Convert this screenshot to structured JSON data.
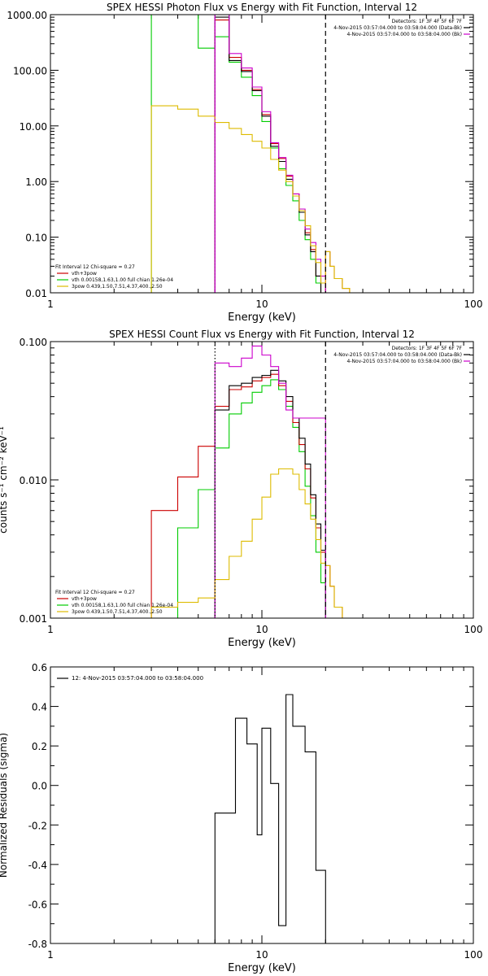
{
  "chart_data": [
    {
      "type": "line",
      "title": "SPEX HESSI Photon Flux vs Energy with Fit Function, Interval 12",
      "xlabel": "Energy (keV)",
      "ylabel": "",
      "xscale": "log",
      "yscale": "log",
      "xlim": [
        1,
        100
      ],
      "ylim": [
        0.01,
        1000
      ],
      "xticks": [
        {
          "v": 1,
          "label": "1"
        },
        {
          "v": 10,
          "label": "10"
        },
        {
          "v": 100,
          "label": "100"
        }
      ],
      "yticks": [
        {
          "v": 0.01,
          "label": "0.01"
        },
        {
          "v": 0.1,
          "label": "0.10"
        },
        {
          "v": 1,
          "label": "1.00"
        },
        {
          "v": 10,
          "label": "10.00"
        },
        {
          "v": 100,
          "label": "100.00"
        },
        {
          "v": 1000,
          "label": "1000.00"
        }
      ],
      "vlines": [
        {
          "x": 6.0,
          "color": "#cc00cc",
          "style": "dotted"
        },
        {
          "x": 20.0,
          "color": "#000000",
          "style": "dashed"
        }
      ],
      "info_lines": [
        "Detectors: 1F 3F 4F 5F 6F 7F",
        "4-Nov-2015 03:57:04.000 to 03:58:04.000 (Data-Bk)",
        "4-Nov-2015 03:57:04.000 to 03:58:04.000 (Bk)"
      ],
      "info_colors": [
        "",
        "#000000",
        "#cc00cc"
      ],
      "legend_lines": [
        "Fit Interval 12   Chi-square = 0.27",
        "vth+3pow",
        "vth 0.00158,1.63,1.00  full chian 1.26e-04",
        "3pow 0.439,1.50,7.51,4.37,400.,2.50"
      ],
      "legend_colors": [
        "",
        "#cc0000",
        "#00cc00",
        "#ddbb00"
      ],
      "series": [
        {
          "color": "#00cc00",
          "edges": [
            3,
            3.5,
            4,
            4.5,
            5,
            5.5,
            6,
            6.5,
            7,
            7.5,
            8,
            8.5,
            9,
            9.5,
            10,
            11,
            12,
            13,
            14,
            15,
            16,
            17,
            18,
            19,
            20
          ],
          "values": [
            1000,
            1000,
            1000,
            1000,
            250,
            250,
            400,
            400,
            140,
            140,
            75,
            75,
            35,
            35,
            12,
            4.0,
            1.7,
            0.85,
            0.45,
            0.2,
            0.09,
            0.04,
            0.015,
            0.008
          ]
        },
        {
          "color": "#cc0000",
          "edges": [
            6,
            6.5,
            7,
            7.5,
            8,
            8.5,
            9,
            9.5,
            10,
            11,
            12,
            13,
            14,
            15,
            16,
            17,
            18,
            19,
            20,
            21,
            22,
            24,
            26,
            28,
            30
          ],
          "values": [
            800,
            800,
            170,
            170,
            100,
            100,
            45,
            45,
            16,
            4.8,
            2.6,
            1.25,
            0.6,
            0.3,
            0.12,
            0.06,
            0.02,
            0.01,
            0.055,
            0.03,
            0.018,
            0.012,
            0.008,
            0.008
          ]
        },
        {
          "color": "#000000",
          "edges": [
            6,
            6.5,
            7,
            7.5,
            8,
            8.5,
            9,
            9.5,
            10,
            11,
            12,
            13,
            14,
            15,
            16,
            17,
            18,
            19,
            20
          ],
          "values": [
            900,
            900,
            150,
            150,
            95,
            95,
            43,
            43,
            15,
            4.3,
            2.3,
            1.1,
            0.55,
            0.28,
            0.11,
            0.055,
            0.02,
            0.01
          ]
        },
        {
          "color": "#cc00cc",
          "edges": [
            6,
            6.5,
            7,
            7.5,
            8,
            8.5,
            9,
            9.5,
            10,
            11,
            12,
            13,
            14,
            15,
            16,
            17,
            18,
            19,
            20
          ],
          "values": [
            1000,
            1000,
            200,
            200,
            110,
            110,
            50,
            50,
            18,
            5.0,
            2.7,
            1.3,
            0.6,
            0.32,
            0.14,
            0.08,
            0.04,
            0.02
          ]
        },
        {
          "color": "#ddbb00",
          "edges": [
            3,
            3.5,
            4,
            4.5,
            5,
            5.5,
            6,
            6.5,
            7,
            7.5,
            8,
            8.5,
            9,
            9.5,
            10,
            11,
            12,
            13,
            14,
            15,
            16,
            17,
            18,
            19,
            20,
            21,
            22,
            24,
            26,
            28,
            30
          ],
          "values": [
            23,
            23,
            20,
            20,
            15,
            15,
            11.5,
            11.5,
            9,
            9,
            7,
            7,
            5.3,
            5.3,
            4.0,
            2.5,
            1.6,
            1.0,
            0.55,
            0.3,
            0.16,
            0.07,
            0.035,
            0.015,
            0.055,
            0.03,
            0.018,
            0.012,
            0.008,
            0.008
          ]
        }
      ]
    },
    {
      "type": "line",
      "title": "SPEX HESSI Count Flux vs Energy with Fit Function, Interval 12",
      "xlabel": "Energy (keV)",
      "ylabel": "counts s⁻¹ cm⁻² keV⁻¹",
      "xscale": "log",
      "yscale": "log",
      "xlim": [
        1,
        100
      ],
      "ylim": [
        0.001,
        0.1
      ],
      "xticks": [
        {
          "v": 1,
          "label": "1"
        },
        {
          "v": 10,
          "label": "10"
        },
        {
          "v": 100,
          "label": "100"
        }
      ],
      "yticks": [
        {
          "v": 0.001,
          "label": "0.001"
        },
        {
          "v": 0.01,
          "label": "0.010"
        },
        {
          "v": 0.1,
          "label": "0.100"
        }
      ],
      "vlines": [
        {
          "x": 6.0,
          "color": "#000000",
          "style": "dotted"
        },
        {
          "x": 20.0,
          "color": "#000000",
          "style": "dashed"
        }
      ],
      "info_lines": [
        "Detectors: 1F 3F 4F 5F 6F 7F",
        "4-Nov-2015 03:57:04.000 to 03:58:04.000 (Data-Bk)",
        "4-Nov-2015 03:57:04.000 to 03:58:04.000 (Bk)"
      ],
      "info_colors": [
        "",
        "#000000",
        "#cc00cc"
      ],
      "legend_lines": [
        "Fit Interval 12   Chi-square = 0.27",
        "vth+3pow",
        "vth 0.00158,1.63,1.00  full chian 1.26e-04",
        "3pow 0.439,1.50,7.51,4.37,400.,2.50"
      ],
      "legend_colors": [
        "",
        "#cc0000",
        "#00cc00",
        "#ddbb00"
      ],
      "series": [
        {
          "color": "#00cc00",
          "edges": [
            3,
            3.5,
            4,
            4.5,
            5,
            5.5,
            6,
            6.5,
            7,
            7.5,
            8,
            8.5,
            9,
            9.5,
            10,
            11,
            12,
            13,
            14,
            15,
            16,
            17,
            18,
            19,
            20
          ],
          "values": [
            0.001,
            0.001,
            0.0045,
            0.0045,
            0.0085,
            0.0085,
            0.017,
            0.017,
            0.03,
            0.03,
            0.036,
            0.036,
            0.043,
            0.043,
            0.048,
            0.053,
            0.045,
            0.034,
            0.024,
            0.016,
            0.009,
            0.0055,
            0.003,
            0.0018
          ]
        },
        {
          "color": "#cc0000",
          "edges": [
            3,
            3.5,
            4,
            4.5,
            5,
            5.5,
            6,
            6.5,
            7,
            7.5,
            8,
            8.5,
            9,
            9.5,
            10,
            11,
            12,
            13,
            14,
            15,
            16,
            17,
            18,
            19,
            20,
            21,
            22,
            24,
            26,
            28,
            30
          ],
          "values": [
            0.006,
            0.006,
            0.0105,
            0.0105,
            0.0175,
            0.0175,
            0.034,
            0.034,
            0.045,
            0.045,
            0.047,
            0.047,
            0.052,
            0.052,
            0.055,
            0.058,
            0.048,
            0.037,
            0.026,
            0.018,
            0.012,
            0.0074,
            0.0045,
            0.003,
            0.0024,
            0.0017,
            0.0012,
            0.001,
            0.001,
            0.001
          ]
        },
        {
          "color": "#000000",
          "edges": [
            6,
            6.5,
            7,
            7.5,
            8,
            8.5,
            9,
            9.5,
            10,
            11,
            12,
            13,
            14,
            15,
            16,
            17,
            18,
            19,
            20
          ],
          "values": [
            0.032,
            0.032,
            0.048,
            0.048,
            0.05,
            0.05,
            0.055,
            0.055,
            0.057,
            0.062,
            0.052,
            0.04,
            0.028,
            0.02,
            0.013,
            0.0078,
            0.0048,
            0.0031
          ]
        },
        {
          "color": "#cc00cc",
          "edges": [
            6,
            6.5,
            7,
            7.5,
            8,
            8.5,
            9,
            9.5,
            10,
            11,
            12,
            13,
            14,
            15,
            16,
            17,
            18,
            19,
            20
          ],
          "values": [
            0.07,
            0.07,
            0.066,
            0.066,
            0.076,
            0.076,
            0.093,
            0.093,
            0.08,
            0.066,
            0.05,
            0.032,
            0.028,
            0.028,
            0.028,
            0.028,
            0.028,
            0.028
          ]
        },
        {
          "color": "#ddbb00",
          "edges": [
            3,
            3.5,
            4,
            4.5,
            5,
            5.5,
            6,
            6.5,
            7,
            7.5,
            8,
            8.5,
            9,
            9.5,
            10,
            11,
            12,
            13,
            14,
            15,
            16,
            17,
            18,
            19,
            20,
            21,
            22,
            24,
            26,
            28,
            30
          ],
          "values": [
            0.0012,
            0.0012,
            0.0013,
            0.0013,
            0.0014,
            0.0014,
            0.0019,
            0.0019,
            0.0028,
            0.0028,
            0.0036,
            0.0036,
            0.0052,
            0.0052,
            0.0075,
            0.011,
            0.012,
            0.012,
            0.011,
            0.0085,
            0.0067,
            0.0052,
            0.0037,
            0.0025,
            0.0024,
            0.0017,
            0.0012,
            0.001,
            0.001,
            0.001
          ]
        }
      ]
    },
    {
      "type": "line",
      "title": "",
      "xlabel": "Energy (keV)",
      "ylabel": "Normalized Residuals (sigma)",
      "xscale": "log",
      "yscale": "linear",
      "xlim": [
        1,
        100
      ],
      "ylim": [
        -0.8,
        0.6
      ],
      "xticks": [
        {
          "v": 1,
          "label": "1"
        },
        {
          "v": 10,
          "label": "10"
        },
        {
          "v": 100,
          "label": "100"
        }
      ],
      "yticks": [
        {
          "v": -0.8,
          "label": "-0.8"
        },
        {
          "v": -0.6,
          "label": "-0.6"
        },
        {
          "v": -0.4,
          "label": "-0.4"
        },
        {
          "v": -0.2,
          "label": "-0.2"
        },
        {
          "v": 0.0,
          "label": "0.0"
        },
        {
          "v": 0.2,
          "label": "0.2"
        },
        {
          "v": 0.4,
          "label": "0.4"
        },
        {
          "v": 0.6,
          "label": "0.6"
        }
      ],
      "vlines": [],
      "info_lines": [],
      "info_colors": [],
      "legend_lines": [
        "12:  4-Nov-2015 03:57:04.000 to 03:58:04.000"
      ],
      "legend_colors": [
        "#000000"
      ],
      "series": [
        {
          "color": "#000000",
          "edges": [
            6,
            7,
            7.5,
            8,
            8.5,
            9,
            9.5,
            10,
            11,
            12,
            13,
            14,
            15,
            16,
            17,
            18,
            19,
            20
          ],
          "values": [
            -0.14,
            -0.14,
            0.34,
            0.34,
            0.21,
            0.21,
            -0.25,
            0.29,
            0.01,
            -0.71,
            0.46,
            0.3,
            0.3,
            0.17,
            0.17,
            -0.43,
            -0.43
          ],
          "drop_to_bottom": true
        }
      ]
    }
  ]
}
